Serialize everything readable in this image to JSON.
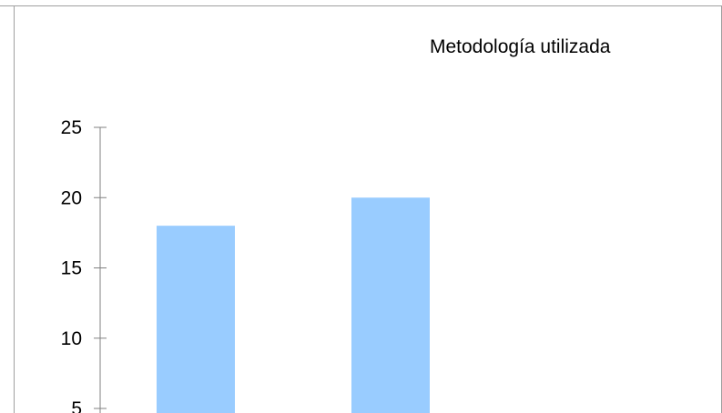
{
  "chart_data": {
    "type": "bar",
    "title": "Metodología utilizada",
    "categories": [
      "",
      ""
    ],
    "values": [
      18,
      20
    ],
    "ylim": [
      5,
      25
    ],
    "yticks": [
      5,
      10,
      15,
      20,
      25
    ],
    "grid": false,
    "legend": "none",
    "bar_color": "#99ccff",
    "axis_color": "#808080"
  }
}
